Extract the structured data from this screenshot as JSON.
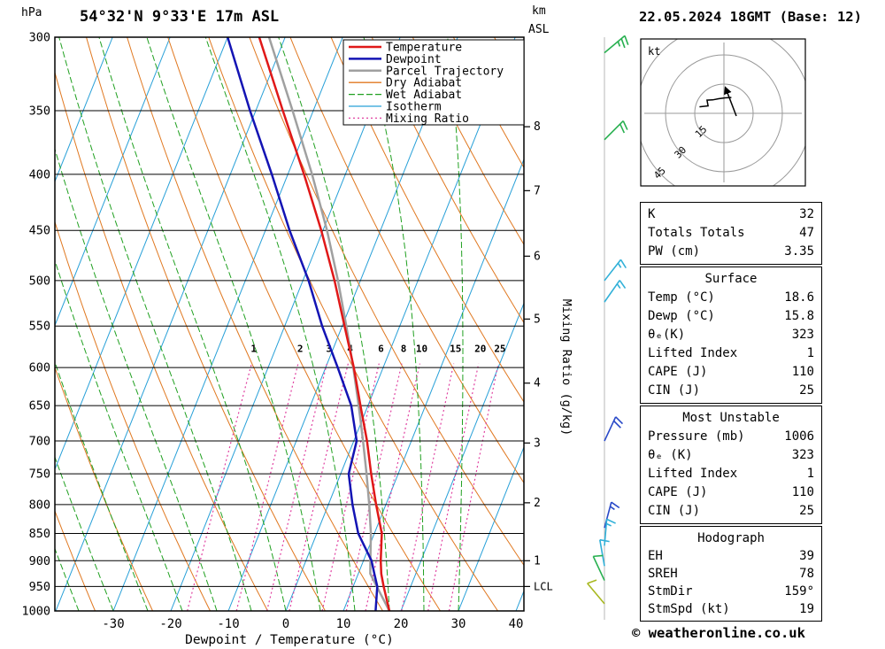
{
  "header": {
    "pressure_unit": "hPa",
    "station": "54°32'N 9°33'E 17m ASL",
    "km_label": "km",
    "asl_label": "ASL",
    "datetime": "22.05.2024 18GMT (Base: 12)"
  },
  "footer": {
    "copyright": "© weatheronline.co.uk"
  },
  "legend": [
    {
      "label": "Temperature",
      "color": "#e01818",
      "style": "solid",
      "width": 2.5
    },
    {
      "label": "Dewpoint",
      "color": "#1414b4",
      "style": "solid",
      "width": 2.5
    },
    {
      "label": "Parcel Trajectory",
      "color": "#a0a0a0",
      "style": "solid",
      "width": 2.5
    },
    {
      "label": "Dry Adiabat",
      "color": "#e07820",
      "style": "solid",
      "width": 1.3
    },
    {
      "label": "Wet Adiabat",
      "color": "#20a020",
      "style": "dash",
      "width": 1.3
    },
    {
      "label": "Isotherm",
      "color": "#28a0d8",
      "style": "solid",
      "width": 1.3
    },
    {
      "label": "Mixing Ratio",
      "color": "#e040a0",
      "style": "dot",
      "width": 1.3
    }
  ],
  "chart_data": {
    "type": "skewt-log-p",
    "axes": {
      "xlabel": "Dewpoint / Temperature (°C)",
      "right_label": "Mixing Ratio (g/kg)",
      "pressure_ticks": [
        300,
        350,
        400,
        450,
        500,
        550,
        600,
        650,
        700,
        750,
        800,
        850,
        900,
        950,
        1000
      ],
      "temp_ticks": [
        -30,
        -20,
        -10,
        0,
        10,
        20,
        30,
        40
      ],
      "pressure_range_hpa": [
        300,
        1000
      ],
      "temp_range_c": [
        -40,
        41
      ],
      "km_ticks": [
        {
          "km": 1,
          "p": 900
        },
        {
          "km": 2,
          "p": 797
        },
        {
          "km": 3,
          "p": 703
        },
        {
          "km": 4,
          "p": 620
        },
        {
          "km": 5,
          "p": 542
        },
        {
          "km": 6,
          "p": 475
        },
        {
          "km": 7,
          "p": 414
        },
        {
          "km": 8,
          "p": 362
        }
      ],
      "lcl": {
        "label": "LCL",
        "p": 950
      }
    },
    "isotherms": {
      "min": -130,
      "max": 40,
      "step": 10
    },
    "dry_adiabats_K": {
      "min": 230,
      "max": 440,
      "step": 10
    },
    "wet_adiabats_C": {
      "min": -36,
      "max": 30,
      "step": 6
    },
    "mixing_ratio_g_kg": [
      1,
      2,
      3,
      4,
      6,
      8,
      10,
      15,
      20,
      25
    ],
    "sounding": {
      "pressure": [
        1000,
        950,
        925,
        900,
        850,
        800,
        750,
        700,
        650,
        600,
        550,
        500,
        450,
        400,
        350,
        300
      ],
      "temperature": [
        18.0,
        15.3,
        14.0,
        13.0,
        11.3,
        8.3,
        5.3,
        2.3,
        -1.3,
        -5.1,
        -9.6,
        -14.5,
        -20.3,
        -27.2,
        -35.3,
        -44.5
      ],
      "dewpoint": [
        15.6,
        14.2,
        12.8,
        11.4,
        7.2,
        4.2,
        1.4,
        0.5,
        -2.9,
        -7.9,
        -13.5,
        -19.0,
        -25.8,
        -32.8,
        -41.0,
        -50.0
      ],
      "parcel": [
        18.0,
        14.1,
        12.1,
        11.2,
        9.4,
        7.1,
        4.5,
        1.6,
        -1.6,
        -5.2,
        -9.3,
        -13.9,
        -19.3,
        -25.8,
        -33.6,
        -42.8
      ]
    },
    "wind_barbs": [
      {
        "p": 310,
        "speed": 25,
        "dir": 50,
        "color": "#28b050"
      },
      {
        "p": 372,
        "speed": 20,
        "dir": 45,
        "color": "#28b050"
      },
      {
        "p": 500,
        "speed": 15,
        "dir": 38,
        "color": "#30b0d8"
      },
      {
        "p": 523,
        "speed": 15,
        "dir": 35,
        "color": "#30b0d8"
      },
      {
        "p": 700,
        "speed": 20,
        "dir": 25,
        "color": "#2848c8"
      },
      {
        "p": 840,
        "speed": 15,
        "dir": 15,
        "color": "#2848c8"
      },
      {
        "p": 872,
        "speed": 15,
        "dir": 5,
        "color": "#30b0d8"
      },
      {
        "p": 910,
        "speed": 10,
        "dir": 350,
        "color": "#30b0d8"
      },
      {
        "p": 938,
        "speed": 10,
        "dir": 335,
        "color": "#28b050"
      },
      {
        "p": 985,
        "speed": 10,
        "dir": 320,
        "color": "#a8b820"
      }
    ],
    "colors": {
      "temperature": "#e01818",
      "dewpoint": "#1414b4",
      "parcel": "#a0a0a0",
      "dry_adiabat": "#e07820",
      "wet_adiabat": "#20a020",
      "isotherm": "#28a0d8",
      "mixing_ratio": "#e040a0"
    }
  },
  "hodograph": {
    "unit": "kt",
    "rings": [
      15,
      30,
      45
    ],
    "trace_dir_spd": [
      [
        105,
        13
      ],
      [
        115,
        9
      ],
      [
        128,
        11
      ],
      [
        140,
        9
      ],
      [
        160,
        8
      ],
      [
        185,
        8
      ],
      [
        205,
        9
      ]
    ],
    "storm": {
      "dir": 159,
      "spd": 19
    }
  },
  "tables": {
    "indices": [
      {
        "label": "K",
        "value": "32"
      },
      {
        "label": "Totals Totals",
        "value": "47"
      },
      {
        "label": "PW (cm)",
        "value": "3.35"
      }
    ],
    "surface_title": "Surface",
    "surface": [
      {
        "label": "Temp (°C)",
        "value": "18.6"
      },
      {
        "label": "Dewp (°C)",
        "value": "15.8"
      },
      {
        "label": "θₑ(K)",
        "value": "323"
      },
      {
        "label": "Lifted Index",
        "value": "1"
      },
      {
        "label": "CAPE (J)",
        "value": "110"
      },
      {
        "label": "CIN (J)",
        "value": "25"
      }
    ],
    "most_unstable_title": "Most Unstable",
    "most_unstable": [
      {
        "label": "Pressure (mb)",
        "value": "1006"
      },
      {
        "label": "θₑ (K)",
        "value": "323"
      },
      {
        "label": "Lifted Index",
        "value": "1"
      },
      {
        "label": "CAPE (J)",
        "value": "110"
      },
      {
        "label": "CIN (J)",
        "value": "25"
      }
    ],
    "hodograph_title": "Hodograph",
    "hodograph": [
      {
        "label": "EH",
        "value": "39"
      },
      {
        "label": "SREH",
        "value": "78"
      },
      {
        "label": "StmDir",
        "value": "159°"
      },
      {
        "label": "StmSpd (kt)",
        "value": "19"
      }
    ]
  }
}
